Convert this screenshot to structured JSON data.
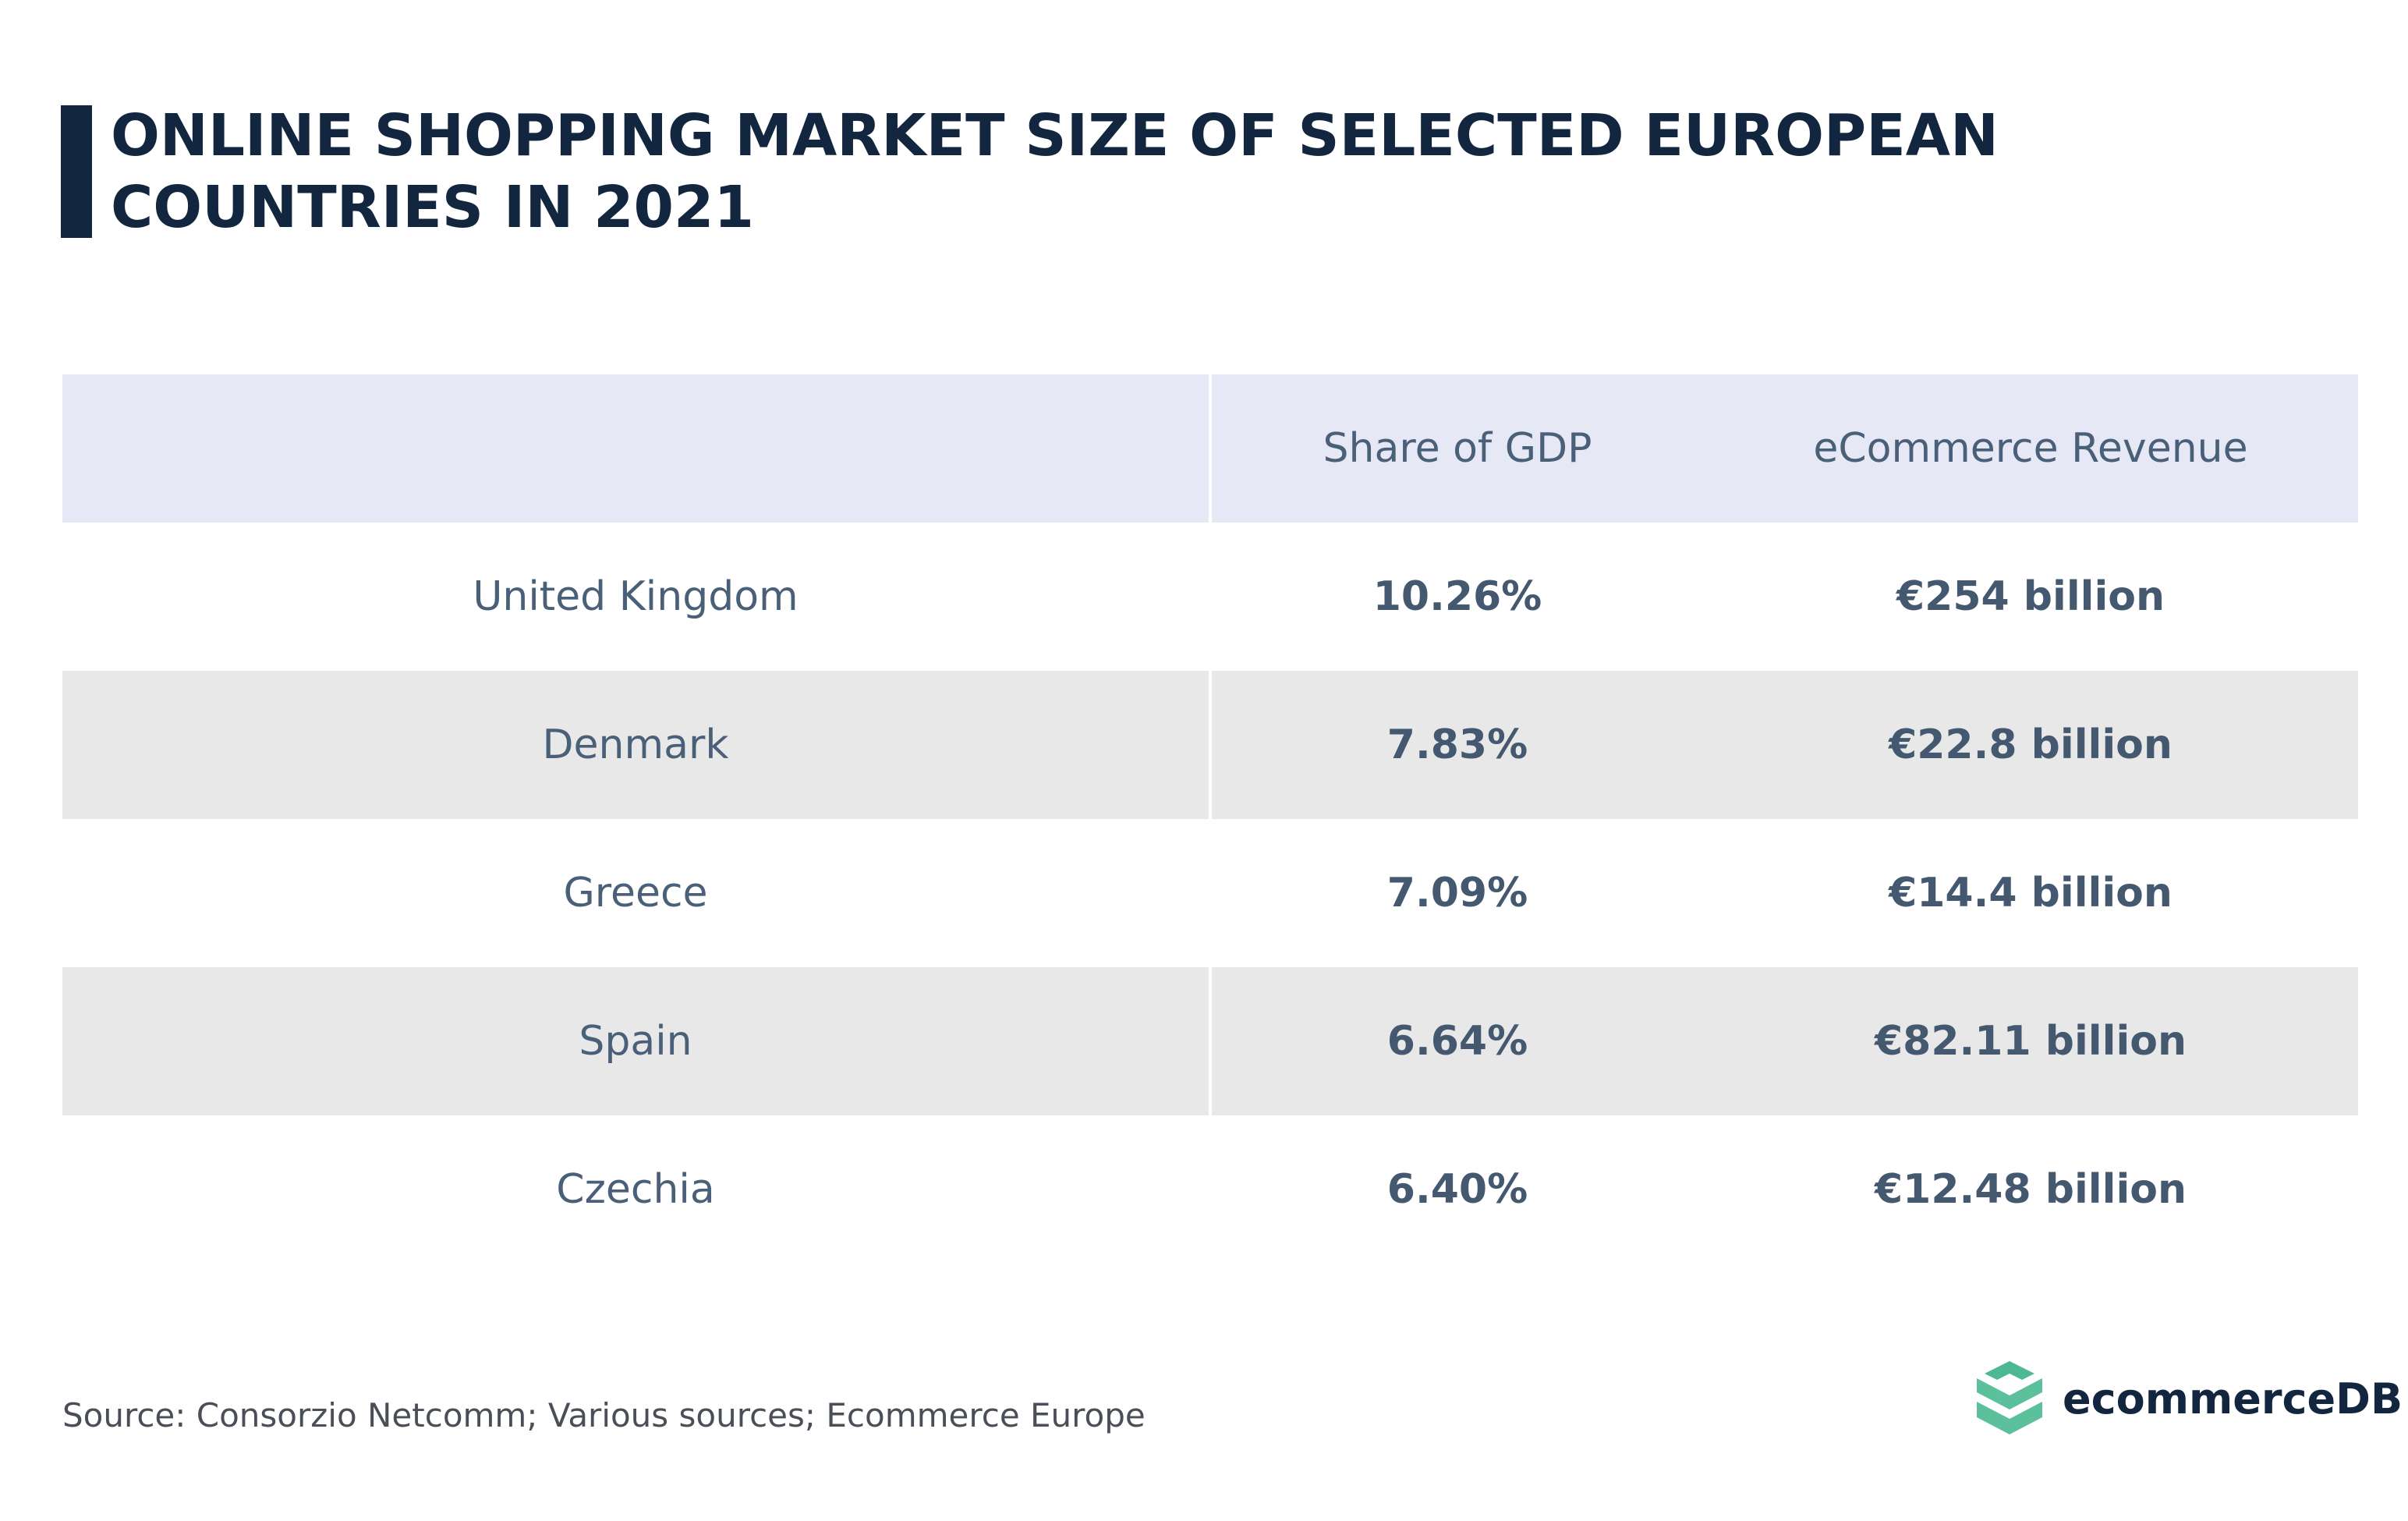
{
  "title": "ONLINE SHOPPING MARKET SIZE OF SELECTED EUROPEAN COUNTRIES IN 2021",
  "table": {
    "headers": [
      "",
      "Share of GDP",
      "eCommerce Revenue"
    ],
    "rows": [
      {
        "country": "United Kingdom",
        "share": "10.26%",
        "revenue": "€254 billion"
      },
      {
        "country": "Denmark",
        "share": "7.83%",
        "revenue": "€22.8 billion"
      },
      {
        "country": "Greece",
        "share": "7.09%",
        "revenue": "€14.4 billion"
      },
      {
        "country": "Spain",
        "share": "6.64%",
        "revenue": "€82.11 billion"
      },
      {
        "country": "Czechia",
        "share": "6.40%",
        "revenue": "€12.48 billion"
      }
    ]
  },
  "source": "Source: Consorzio Netcomm; Various sources; Ecommerce Europe",
  "logo": {
    "text": "ecommerceDB",
    "icon": "stacked-layers-icon",
    "color": "#4db892"
  },
  "colors": {
    "title": "#13263f",
    "header_bg": "#e6e9f5",
    "stripe_bg": "#e8e8e8",
    "text": "#4a5f78"
  }
}
